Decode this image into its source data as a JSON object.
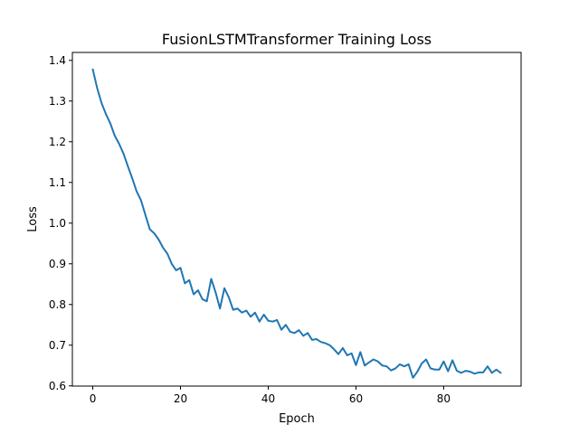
{
  "chart_data": {
    "type": "line",
    "title": "FusionLSTMTransformer Training Loss",
    "xlabel": "Epoch",
    "ylabel": "Loss",
    "xlim": [
      -4.65,
      97.65
    ],
    "ylim": [
      0.5995,
      1.4195
    ],
    "grid": false,
    "line_color": "#1f77b4",
    "x_ticks": [
      0,
      20,
      40,
      60,
      80
    ],
    "x_tick_labels": [
      "0",
      "20",
      "40",
      "60",
      "80"
    ],
    "y_ticks": [
      0.6,
      0.7,
      0.8,
      0.9,
      1.0,
      1.1,
      1.2,
      1.3,
      1.4
    ],
    "y_tick_labels": [
      "0.6",
      "0.7",
      "0.8",
      "0.9",
      "1.0",
      "1.1",
      "1.2",
      "1.3",
      "1.4"
    ],
    "series": [
      {
        "x": [
          0,
          1,
          2,
          3,
          4,
          5,
          6,
          7,
          8,
          9,
          10,
          11,
          12,
          13,
          14,
          15,
          16,
          17,
          18,
          19,
          20,
          21,
          22,
          23,
          24,
          25,
          26,
          27,
          28,
          29,
          30,
          31,
          32,
          33,
          34,
          35,
          36,
          37,
          38,
          39,
          40,
          41,
          42,
          43,
          44,
          45,
          46,
          47,
          48,
          49,
          50,
          51,
          52,
          53,
          54,
          55,
          56,
          57,
          58,
          59,
          60,
          61,
          62,
          63,
          64,
          65,
          66,
          67,
          68,
          69,
          70,
          71,
          72,
          73,
          74,
          75,
          76,
          77,
          78,
          79,
          80,
          81,
          82,
          83,
          84,
          85,
          86,
          87,
          88,
          89,
          90,
          91,
          92,
          93
        ],
        "values": [
          1.378,
          1.332,
          1.295,
          1.268,
          1.245,
          1.215,
          1.195,
          1.171,
          1.14,
          1.11,
          1.078,
          1.056,
          1.02,
          0.985,
          0.975,
          0.96,
          0.94,
          0.925,
          0.9,
          0.884,
          0.89,
          0.852,
          0.86,
          0.825,
          0.835,
          0.813,
          0.808,
          0.863,
          0.83,
          0.79,
          0.84,
          0.818,
          0.787,
          0.79,
          0.78,
          0.785,
          0.77,
          0.78,
          0.758,
          0.775,
          0.76,
          0.758,
          0.762,
          0.738,
          0.75,
          0.733,
          0.73,
          0.737,
          0.723,
          0.73,
          0.713,
          0.715,
          0.708,
          0.705,
          0.7,
          0.69,
          0.678,
          0.693,
          0.675,
          0.68,
          0.651,
          0.683,
          0.65,
          0.658,
          0.665,
          0.66,
          0.65,
          0.648,
          0.638,
          0.643,
          0.653,
          0.648,
          0.653,
          0.62,
          0.635,
          0.655,
          0.665,
          0.643,
          0.64,
          0.64,
          0.66,
          0.636,
          0.663,
          0.637,
          0.632,
          0.637,
          0.635,
          0.63,
          0.633,
          0.633,
          0.648,
          0.632,
          0.64,
          0.632
        ]
      }
    ]
  }
}
